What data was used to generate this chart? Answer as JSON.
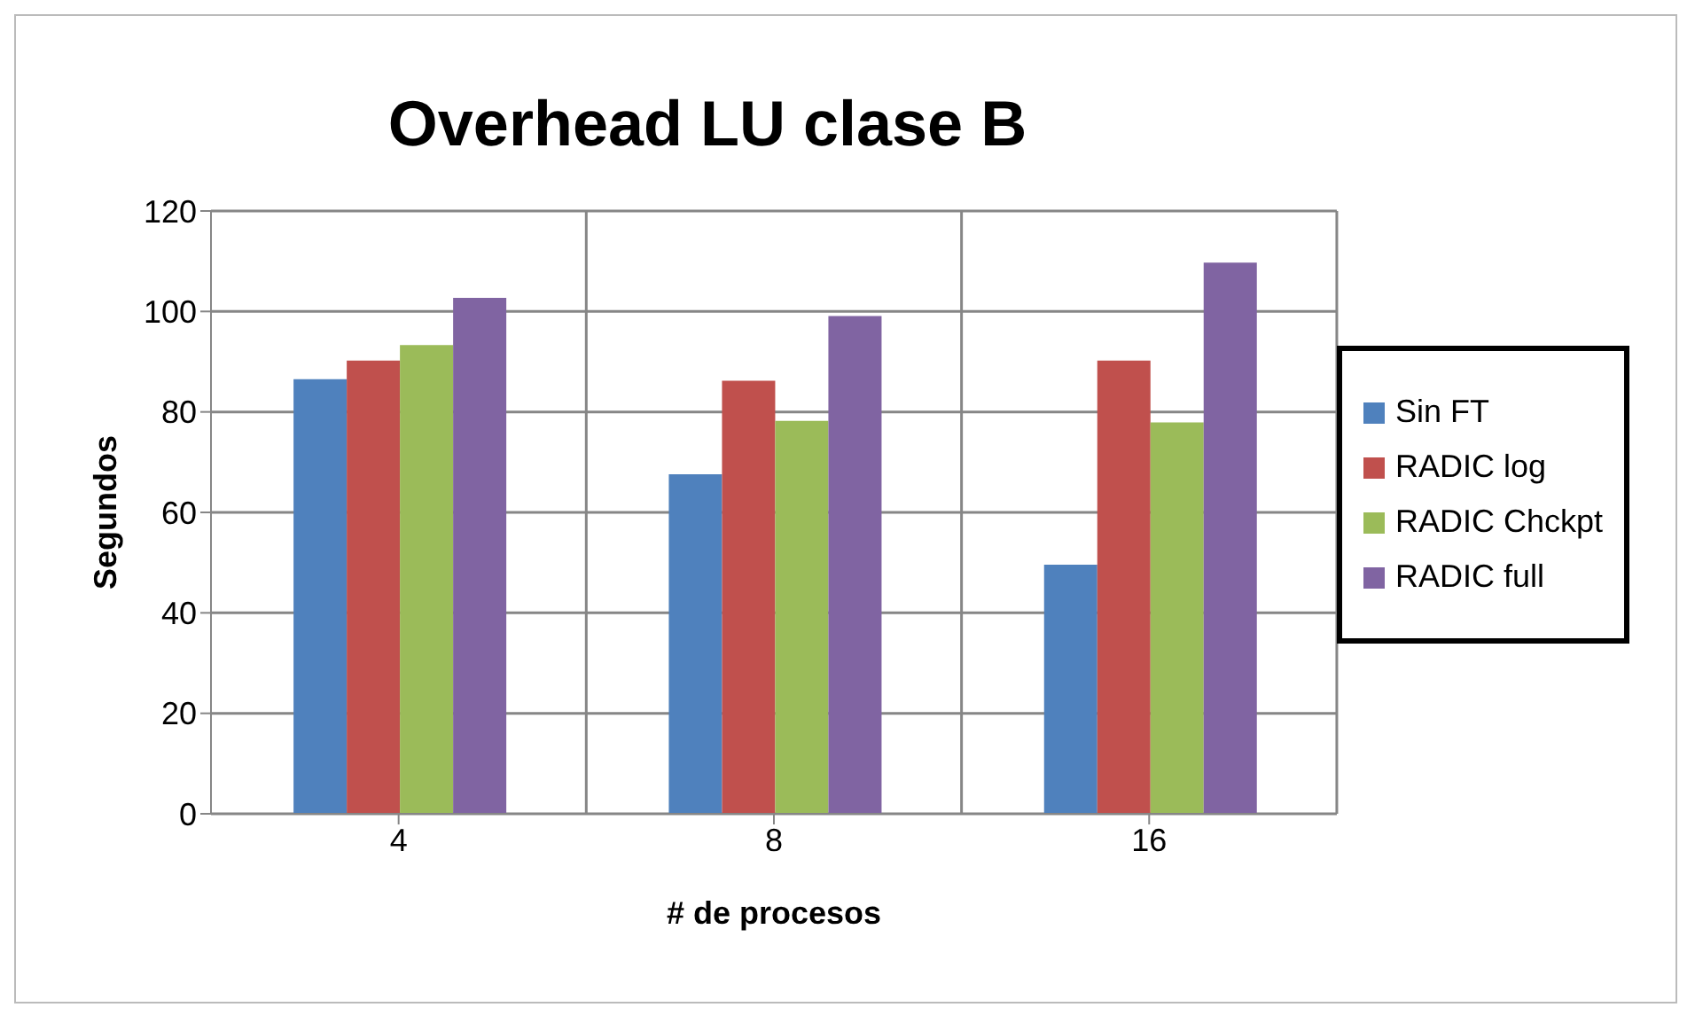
{
  "chart_data": {
    "type": "bar",
    "title": "Overhead LU clase B",
    "xlabel": "# de procesos",
    "ylabel": "Segundos",
    "categories": [
      "4",
      "8",
      "16"
    ],
    "series": [
      {
        "name": "Sin FT",
        "color": "#4f81bd",
        "values": [
          86.5,
          67.6,
          49.6
        ]
      },
      {
        "name": "RADIC log",
        "color": "#c0504d",
        "values": [
          90.2,
          86.2,
          90.2
        ]
      },
      {
        "name": "RADIC Chckpt",
        "color": "#9bbb59",
        "values": [
          93.3,
          78.2,
          77.9
        ]
      },
      {
        "name": "RADIC full",
        "color": "#8064a2",
        "values": [
          102.7,
          99.1,
          109.7
        ]
      }
    ],
    "ylim": [
      0,
      120
    ],
    "yticks": [
      0,
      20,
      40,
      60,
      80,
      100,
      120
    ],
    "grid": true,
    "legend": "right"
  }
}
